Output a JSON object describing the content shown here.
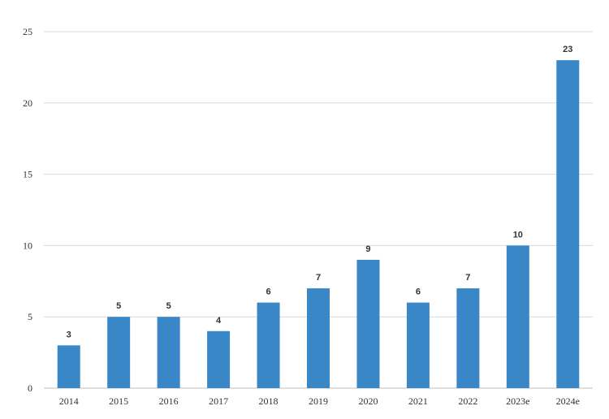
{
  "chart_data": {
    "type": "bar",
    "categories": [
      "2014",
      "2015",
      "2016",
      "2017",
      "2018",
      "2019",
      "2020",
      "2021",
      "2022",
      "2023e",
      "2024e"
    ],
    "values": [
      3,
      5,
      5,
      4,
      6,
      7,
      9,
      6,
      7,
      10,
      23
    ],
    "data_labels": [
      "3",
      "5",
      "5",
      "4",
      "6",
      "7",
      "9",
      "6",
      "7",
      "10",
      "23"
    ],
    "yticks": [
      "0",
      "5",
      "10",
      "15",
      "20",
      "25"
    ],
    "ylim": [
      0,
      25
    ],
    "grid": true,
    "legend": "none",
    "bar_color": "#3a87c8",
    "grid_color": "#d9d9d9"
  }
}
